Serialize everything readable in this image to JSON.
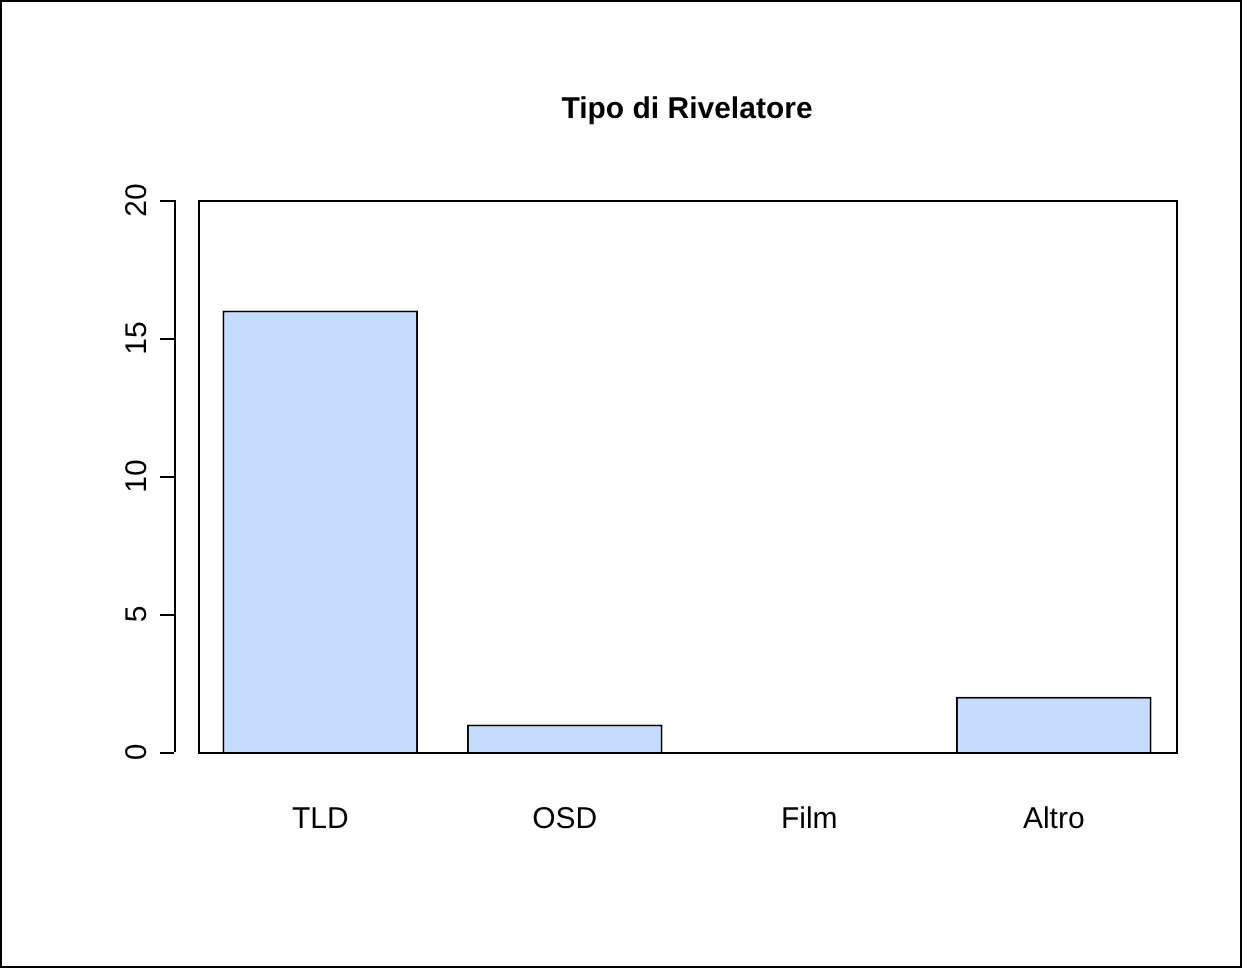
{
  "chart_data": {
    "type": "bar",
    "title": "Tipo di Rivelatore",
    "categories": [
      "TLD",
      "OSD",
      "Film",
      "Altro"
    ],
    "values": [
      16,
      1,
      0,
      2
    ],
    "color": "#c6dcff",
    "ylim": [
      0,
      20
    ],
    "yticks": [
      0,
      5,
      10,
      15,
      20
    ]
  }
}
